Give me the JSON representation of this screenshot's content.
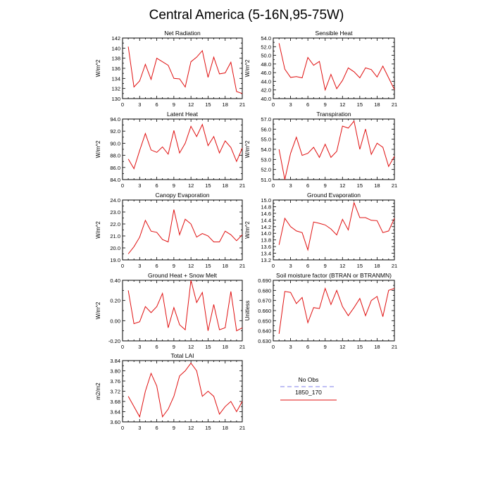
{
  "figure_title": "Central America (5-16N,95-75W)",
  "legend": {
    "items": [
      {
        "label": "No Obs",
        "color": "#9999ee",
        "style": "dashed"
      },
      {
        "label": "1850_170",
        "color": "#e01010",
        "style": "solid"
      }
    ]
  },
  "chart_data": [
    {
      "type": "line",
      "title": "Net Radiation",
      "ylabel": "W/m^2",
      "xlabel": "",
      "xlim": [
        0,
        21
      ],
      "xticks": [
        0,
        3,
        6,
        9,
        12,
        15,
        18,
        21
      ],
      "ylim": [
        130,
        142
      ],
      "yticks": [
        130,
        132,
        134,
        136,
        138,
        140,
        142
      ],
      "ytick_labels": [
        "130",
        "132",
        "134",
        "136",
        "138",
        "140",
        "142"
      ],
      "series": [
        {
          "name": "1850_170",
          "color": "#e01010",
          "x": [
            1,
            2,
            3,
            4,
            5,
            6,
            7,
            8,
            9,
            10,
            11,
            12,
            13,
            14,
            15,
            16,
            17,
            18,
            19,
            20,
            21
          ],
          "y": [
            140.3,
            132.3,
            133.5,
            136.8,
            133.8,
            138.0,
            137.3,
            136.6,
            134.0,
            133.9,
            132.3,
            137.3,
            138.2,
            139.5,
            134.2,
            138.2,
            134.9,
            135.1,
            137.2,
            131.4,
            131.0
          ]
        }
      ]
    },
    {
      "type": "line",
      "title": "Sensible Heat",
      "ylabel": "W/m^2",
      "xlabel": "",
      "xlim": [
        0,
        21
      ],
      "xticks": [
        0,
        3,
        6,
        9,
        12,
        15,
        18,
        21
      ],
      "ylim": [
        40,
        54
      ],
      "yticks": [
        40,
        42,
        44,
        46,
        48,
        50,
        52,
        54
      ],
      "ytick_labels": [
        "40.0",
        "42.0",
        "44.0",
        "46.0",
        "48.0",
        "50.0",
        "52.0",
        "54.0"
      ],
      "series": [
        {
          "name": "1850_170",
          "color": "#e01010",
          "x": [
            1,
            2,
            3,
            4,
            5,
            6,
            7,
            8,
            9,
            10,
            11,
            12,
            13,
            14,
            15,
            16,
            17,
            18,
            19,
            20,
            21
          ],
          "y": [
            52.8,
            46.8,
            44.9,
            45.1,
            44.8,
            49.5,
            47.7,
            48.6,
            42.0,
            45.6,
            42.3,
            44.2,
            47.1,
            46.2,
            44.8,
            47.1,
            46.7,
            45.0,
            47.5,
            44.8,
            42.1
          ]
        }
      ]
    },
    {
      "type": "line",
      "title": "Latent Heat",
      "ylabel": "W/m^2",
      "xlabel": "",
      "xlim": [
        0,
        21
      ],
      "xticks": [
        0,
        3,
        6,
        9,
        12,
        15,
        18,
        21
      ],
      "ylim": [
        84,
        94
      ],
      "yticks": [
        84,
        86,
        88,
        90,
        92,
        94
      ],
      "ytick_labels": [
        "84.0",
        "86.0",
        "88.0",
        "90.0",
        "92.0",
        "94.0"
      ],
      "series": [
        {
          "name": "1850_170",
          "color": "#e01010",
          "x": [
            1,
            2,
            3,
            4,
            5,
            6,
            7,
            8,
            9,
            10,
            11,
            12,
            13,
            14,
            15,
            16,
            17,
            18,
            19,
            20,
            21
          ],
          "y": [
            87.4,
            85.8,
            88.8,
            91.6,
            88.9,
            88.5,
            89.4,
            88.2,
            92.1,
            88.4,
            90.0,
            92.8,
            91.1,
            93.1,
            89.6,
            91.1,
            88.4,
            90.4,
            89.3,
            87.0,
            89.2
          ]
        }
      ]
    },
    {
      "type": "line",
      "title": "Transpiration",
      "ylabel": "W/m^2",
      "xlabel": "",
      "xlim": [
        0,
        21
      ],
      "xticks": [
        0,
        3,
        6,
        9,
        12,
        15,
        18,
        21
      ],
      "ylim": [
        51,
        57
      ],
      "yticks": [
        51,
        52,
        53,
        54,
        55,
        56,
        57
      ],
      "ytick_labels": [
        "51.0",
        "52.0",
        "53.0",
        "54.0",
        "55.0",
        "56.0",
        "57.0"
      ],
      "series": [
        {
          "name": "1850_170",
          "color": "#e01010",
          "x": [
            1,
            2,
            3,
            4,
            5,
            6,
            7,
            8,
            9,
            10,
            11,
            12,
            13,
            14,
            15,
            16,
            17,
            18,
            19,
            20,
            21
          ],
          "y": [
            54.0,
            51.0,
            53.6,
            55.2,
            53.4,
            53.6,
            54.2,
            53.2,
            54.5,
            53.2,
            53.8,
            56.3,
            56.1,
            56.8,
            54.0,
            56.0,
            53.5,
            54.6,
            54.2,
            52.3,
            53.3
          ]
        }
      ]
    },
    {
      "type": "line",
      "title": "Canopy Evaporation",
      "ylabel": "W/m^2",
      "xlabel": "",
      "xlim": [
        0,
        21
      ],
      "xticks": [
        0,
        3,
        6,
        9,
        12,
        15,
        18,
        21
      ],
      "ylim": [
        19,
        24
      ],
      "yticks": [
        19,
        20,
        21,
        22,
        23,
        24
      ],
      "ytick_labels": [
        "19.0",
        "20.0",
        "21.0",
        "22.0",
        "23.0",
        "24.0"
      ],
      "series": [
        {
          "name": "1850_170",
          "color": "#e01010",
          "x": [
            1,
            2,
            3,
            4,
            5,
            6,
            7,
            8,
            9,
            10,
            11,
            12,
            13,
            14,
            15,
            16,
            17,
            18,
            19,
            20,
            21
          ],
          "y": [
            19.5,
            20.1,
            20.9,
            22.3,
            21.4,
            21.3,
            20.7,
            20.5,
            23.2,
            21.1,
            22.4,
            22.0,
            20.9,
            21.2,
            21.0,
            20.5,
            20.5,
            21.4,
            21.1,
            20.6,
            21.1
          ]
        }
      ]
    },
    {
      "type": "line",
      "title": "Ground Evaporation",
      "ylabel": "W/m^2",
      "xlabel": "",
      "xlim": [
        0,
        21
      ],
      "xticks": [
        0,
        3,
        6,
        9,
        12,
        15,
        18,
        21
      ],
      "ylim": [
        13.2,
        15.0
      ],
      "yticks": [
        13.2,
        13.4,
        13.6,
        13.8,
        14.0,
        14.2,
        14.4,
        14.6,
        14.8,
        15.0
      ],
      "ytick_labels": [
        "13.2",
        "13.4",
        "13.6",
        "13.8",
        "14.0",
        "14.2",
        "14.4",
        "14.6",
        "14.8",
        "15.0"
      ],
      "series": [
        {
          "name": "1850_170",
          "color": "#e01010",
          "x": [
            1,
            2,
            3,
            4,
            5,
            6,
            7,
            8,
            9,
            10,
            11,
            12,
            13,
            14,
            15,
            16,
            17,
            18,
            19,
            20,
            21
          ],
          "y": [
            13.65,
            14.45,
            14.2,
            14.07,
            14.02,
            13.5,
            14.34,
            14.3,
            14.25,
            14.13,
            13.95,
            14.42,
            14.1,
            14.92,
            14.47,
            14.47,
            14.39,
            14.38,
            14.02,
            14.07,
            14.45
          ]
        }
      ]
    },
    {
      "type": "line",
      "title": "Ground Heat + Snow Melt",
      "ylabel": "W/m^2",
      "xlabel": "",
      "xlim": [
        0,
        21
      ],
      "xticks": [
        0,
        3,
        6,
        9,
        12,
        15,
        18,
        21
      ],
      "ylim": [
        -0.2,
        0.4
      ],
      "yticks": [
        -0.2,
        0.0,
        0.2,
        0.4
      ],
      "ytick_labels": [
        "-0.20",
        "0.00",
        "0.20",
        "0.40"
      ],
      "series": [
        {
          "name": "1850_170",
          "color": "#e01010",
          "x": [
            1,
            2,
            3,
            4,
            5,
            6,
            7,
            8,
            9,
            10,
            11,
            12,
            13,
            14,
            15,
            16,
            17,
            18,
            19,
            20,
            21
          ],
          "y": [
            0.3,
            -0.03,
            -0.01,
            0.14,
            0.08,
            0.14,
            0.27,
            -0.07,
            0.13,
            -0.04,
            -0.09,
            0.4,
            0.18,
            0.28,
            -0.1,
            0.16,
            -0.09,
            -0.07,
            0.29,
            -0.1,
            -0.07
          ]
        }
      ]
    },
    {
      "type": "line",
      "title": "Soil moisture factor (BTRAN or BTRANMN)",
      "ylabel": "Unitless",
      "xlabel": "",
      "xlim": [
        0,
        21
      ],
      "xticks": [
        0,
        3,
        6,
        9,
        12,
        15,
        18,
        21
      ],
      "ylim": [
        0.63,
        0.69
      ],
      "yticks": [
        0.63,
        0.64,
        0.65,
        0.66,
        0.67,
        0.68,
        0.69
      ],
      "ytick_labels": [
        "0.630",
        "0.640",
        "0.650",
        "0.660",
        "0.670",
        "0.680",
        "0.690"
      ],
      "series": [
        {
          "name": "1850_170",
          "color": "#e01010",
          "x": [
            1,
            2,
            3,
            4,
            5,
            6,
            7,
            8,
            9,
            10,
            11,
            12,
            13,
            14,
            15,
            16,
            17,
            18,
            19,
            20,
            21
          ],
          "y": [
            0.637,
            0.679,
            0.678,
            0.667,
            0.673,
            0.648,
            0.663,
            0.662,
            0.682,
            0.666,
            0.68,
            0.664,
            0.655,
            0.663,
            0.672,
            0.655,
            0.67,
            0.674,
            0.654,
            0.68,
            0.682
          ]
        }
      ]
    },
    {
      "type": "line",
      "title": "Total LAI",
      "ylabel": "m2/m2",
      "xlabel": "",
      "xlim": [
        0,
        21
      ],
      "xticks": [
        0,
        3,
        6,
        9,
        12,
        15,
        18,
        21
      ],
      "ylim": [
        3.6,
        3.84
      ],
      "yticks": [
        3.6,
        3.64,
        3.68,
        3.72,
        3.76,
        3.8,
        3.84
      ],
      "ytick_labels": [
        "3.60",
        "3.64",
        "3.68",
        "3.72",
        "3.76",
        "3.80",
        "3.84"
      ],
      "series": [
        {
          "name": "1850_170",
          "color": "#e01010",
          "x": [
            1,
            2,
            3,
            4,
            5,
            6,
            7,
            8,
            9,
            10,
            11,
            12,
            13,
            14,
            15,
            16,
            17,
            18,
            19,
            20,
            21
          ],
          "y": [
            3.7,
            3.66,
            3.62,
            3.72,
            3.79,
            3.74,
            3.62,
            3.65,
            3.7,
            3.78,
            3.8,
            3.83,
            3.8,
            3.7,
            3.72,
            3.7,
            3.63,
            3.66,
            3.68,
            3.64,
            3.68
          ]
        }
      ]
    }
  ]
}
